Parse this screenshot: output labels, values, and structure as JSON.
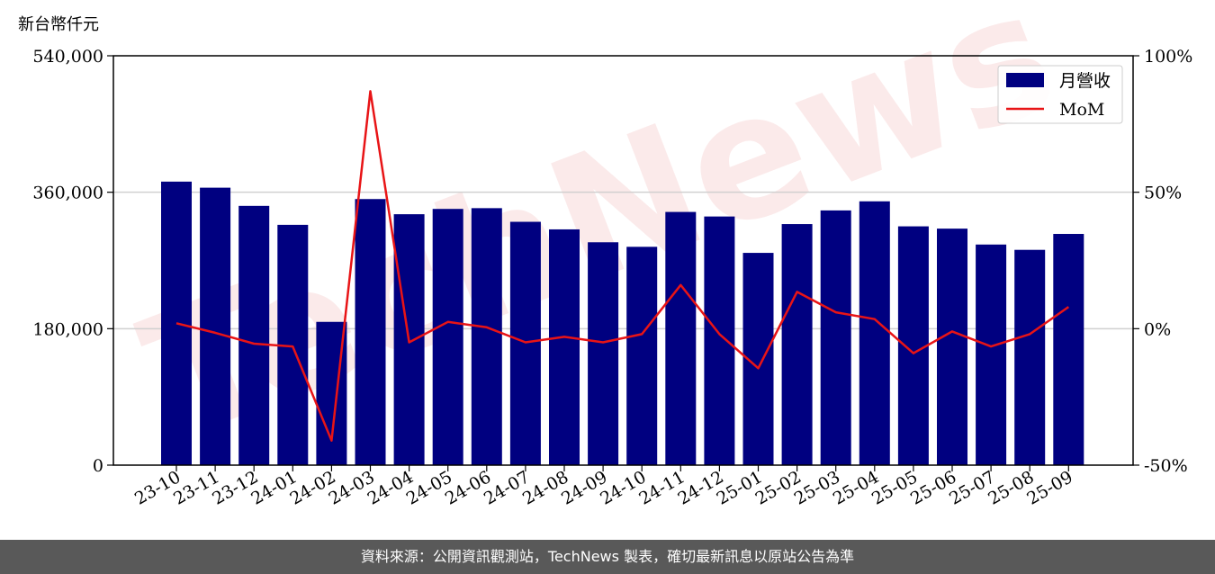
{
  "footer": "資料來源：公開資訊觀測站，TechNews 製表，確切最新訊息以原站公告為準",
  "watermark": "TechNews",
  "chart_data": {
    "type": "bar",
    "categories": [
      "23-10",
      "23-11",
      "23-12",
      "24-01",
      "24-02",
      "24-03",
      "24-04",
      "24-05",
      "24-06",
      "24-07",
      "24-08",
      "24-09",
      "24-10",
      "24-11",
      "24-12",
      "25-01",
      "25-02",
      "25-03",
      "25-04",
      "25-05",
      "25-06",
      "25-07",
      "25-08",
      "25-09"
    ],
    "series": [
      {
        "name": "月營收",
        "axis": "left",
        "type": "bar",
        "color": "#000080",
        "values": [
          374000,
          366000,
          342000,
          317000,
          189000,
          351000,
          331000,
          338000,
          339000,
          321000,
          311000,
          294000,
          288000,
          334000,
          328000,
          280000,
          318000,
          336000,
          348000,
          315000,
          312000,
          291000,
          284000,
          305000
        ]
      },
      {
        "name": "MoM",
        "axis": "right",
        "type": "line",
        "color": "#e81416",
        "values": [
          2,
          -1.5,
          -5.5,
          -6.5,
          -41,
          87,
          -5,
          2.5,
          0.5,
          -5,
          -3,
          -5,
          -2,
          16,
          -2,
          -14.5,
          13.5,
          6,
          3.5,
          -9,
          -1,
          -6.5,
          -2,
          8
        ]
      }
    ],
    "ylabel_left": "新台幣仟元",
    "yleft": {
      "min": 0,
      "max": 540000,
      "ticks": [
        0,
        180000,
        360000,
        540000
      ],
      "tick_labels": [
        "0",
        "180,000",
        "360,000",
        "540,000"
      ]
    },
    "yright": {
      "min": -50,
      "max": 100,
      "ticks": [
        -50,
        0,
        50,
        100
      ],
      "tick_labels": [
        "-50%",
        "0%",
        "50%",
        "100%"
      ]
    },
    "grid": "horizontal",
    "legend": "top-right"
  }
}
